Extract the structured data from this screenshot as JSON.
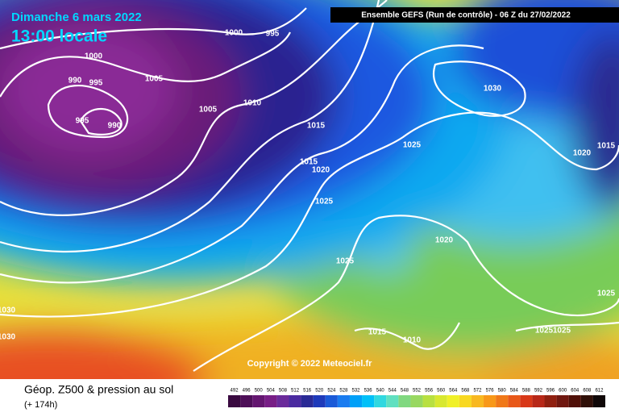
{
  "header": {
    "date": "Dimanche 6 mars 2022",
    "time": "13:00 locale",
    "run": "Ensemble GEFS  (Run de contrôle)  -  06 Z du 27/02/2022"
  },
  "map": {
    "isobar_labels": [
      1000,
      995,
      1000,
      990,
      995,
      1005,
      995,
      990,
      1005,
      1010,
      1015,
      1015,
      1020,
      1025,
      1030,
      1025,
      1020,
      1015,
      1020,
      1025,
      1025,
      1030,
      1030,
      1015,
      1010,
      1025,
      1025
    ],
    "copyright": "Copyright © 2022 Meteociel.fr"
  },
  "footer": {
    "title": "Géop. Z500 & pression au sol",
    "lead": "(+ 174h)"
  },
  "legend": {
    "values": [
      492,
      496,
      500,
      504,
      508,
      512,
      516,
      520,
      524,
      528,
      532,
      536,
      540,
      544,
      548,
      552,
      556,
      560,
      564,
      568,
      572,
      576,
      580,
      584,
      588,
      592,
      596,
      600,
      604,
      608,
      612
    ],
    "colors": [
      "#3a0a40",
      "#4e0f58",
      "#641670",
      "#781e86",
      "#6a2a9a",
      "#4a2aa0",
      "#2a2a96",
      "#1e3aba",
      "#1a5ad8",
      "#1a7cf0",
      "#00a0f8",
      "#00c0f8",
      "#30d8e0",
      "#60e0c0",
      "#80d880",
      "#98d860",
      "#b8e040",
      "#d8e830",
      "#f0f028",
      "#f8d820",
      "#f8b820",
      "#f89818",
      "#f07818",
      "#e85818",
      "#d83818",
      "#b82818",
      "#902010",
      "#701810",
      "#501008",
      "#301008",
      "#100808"
    ]
  }
}
